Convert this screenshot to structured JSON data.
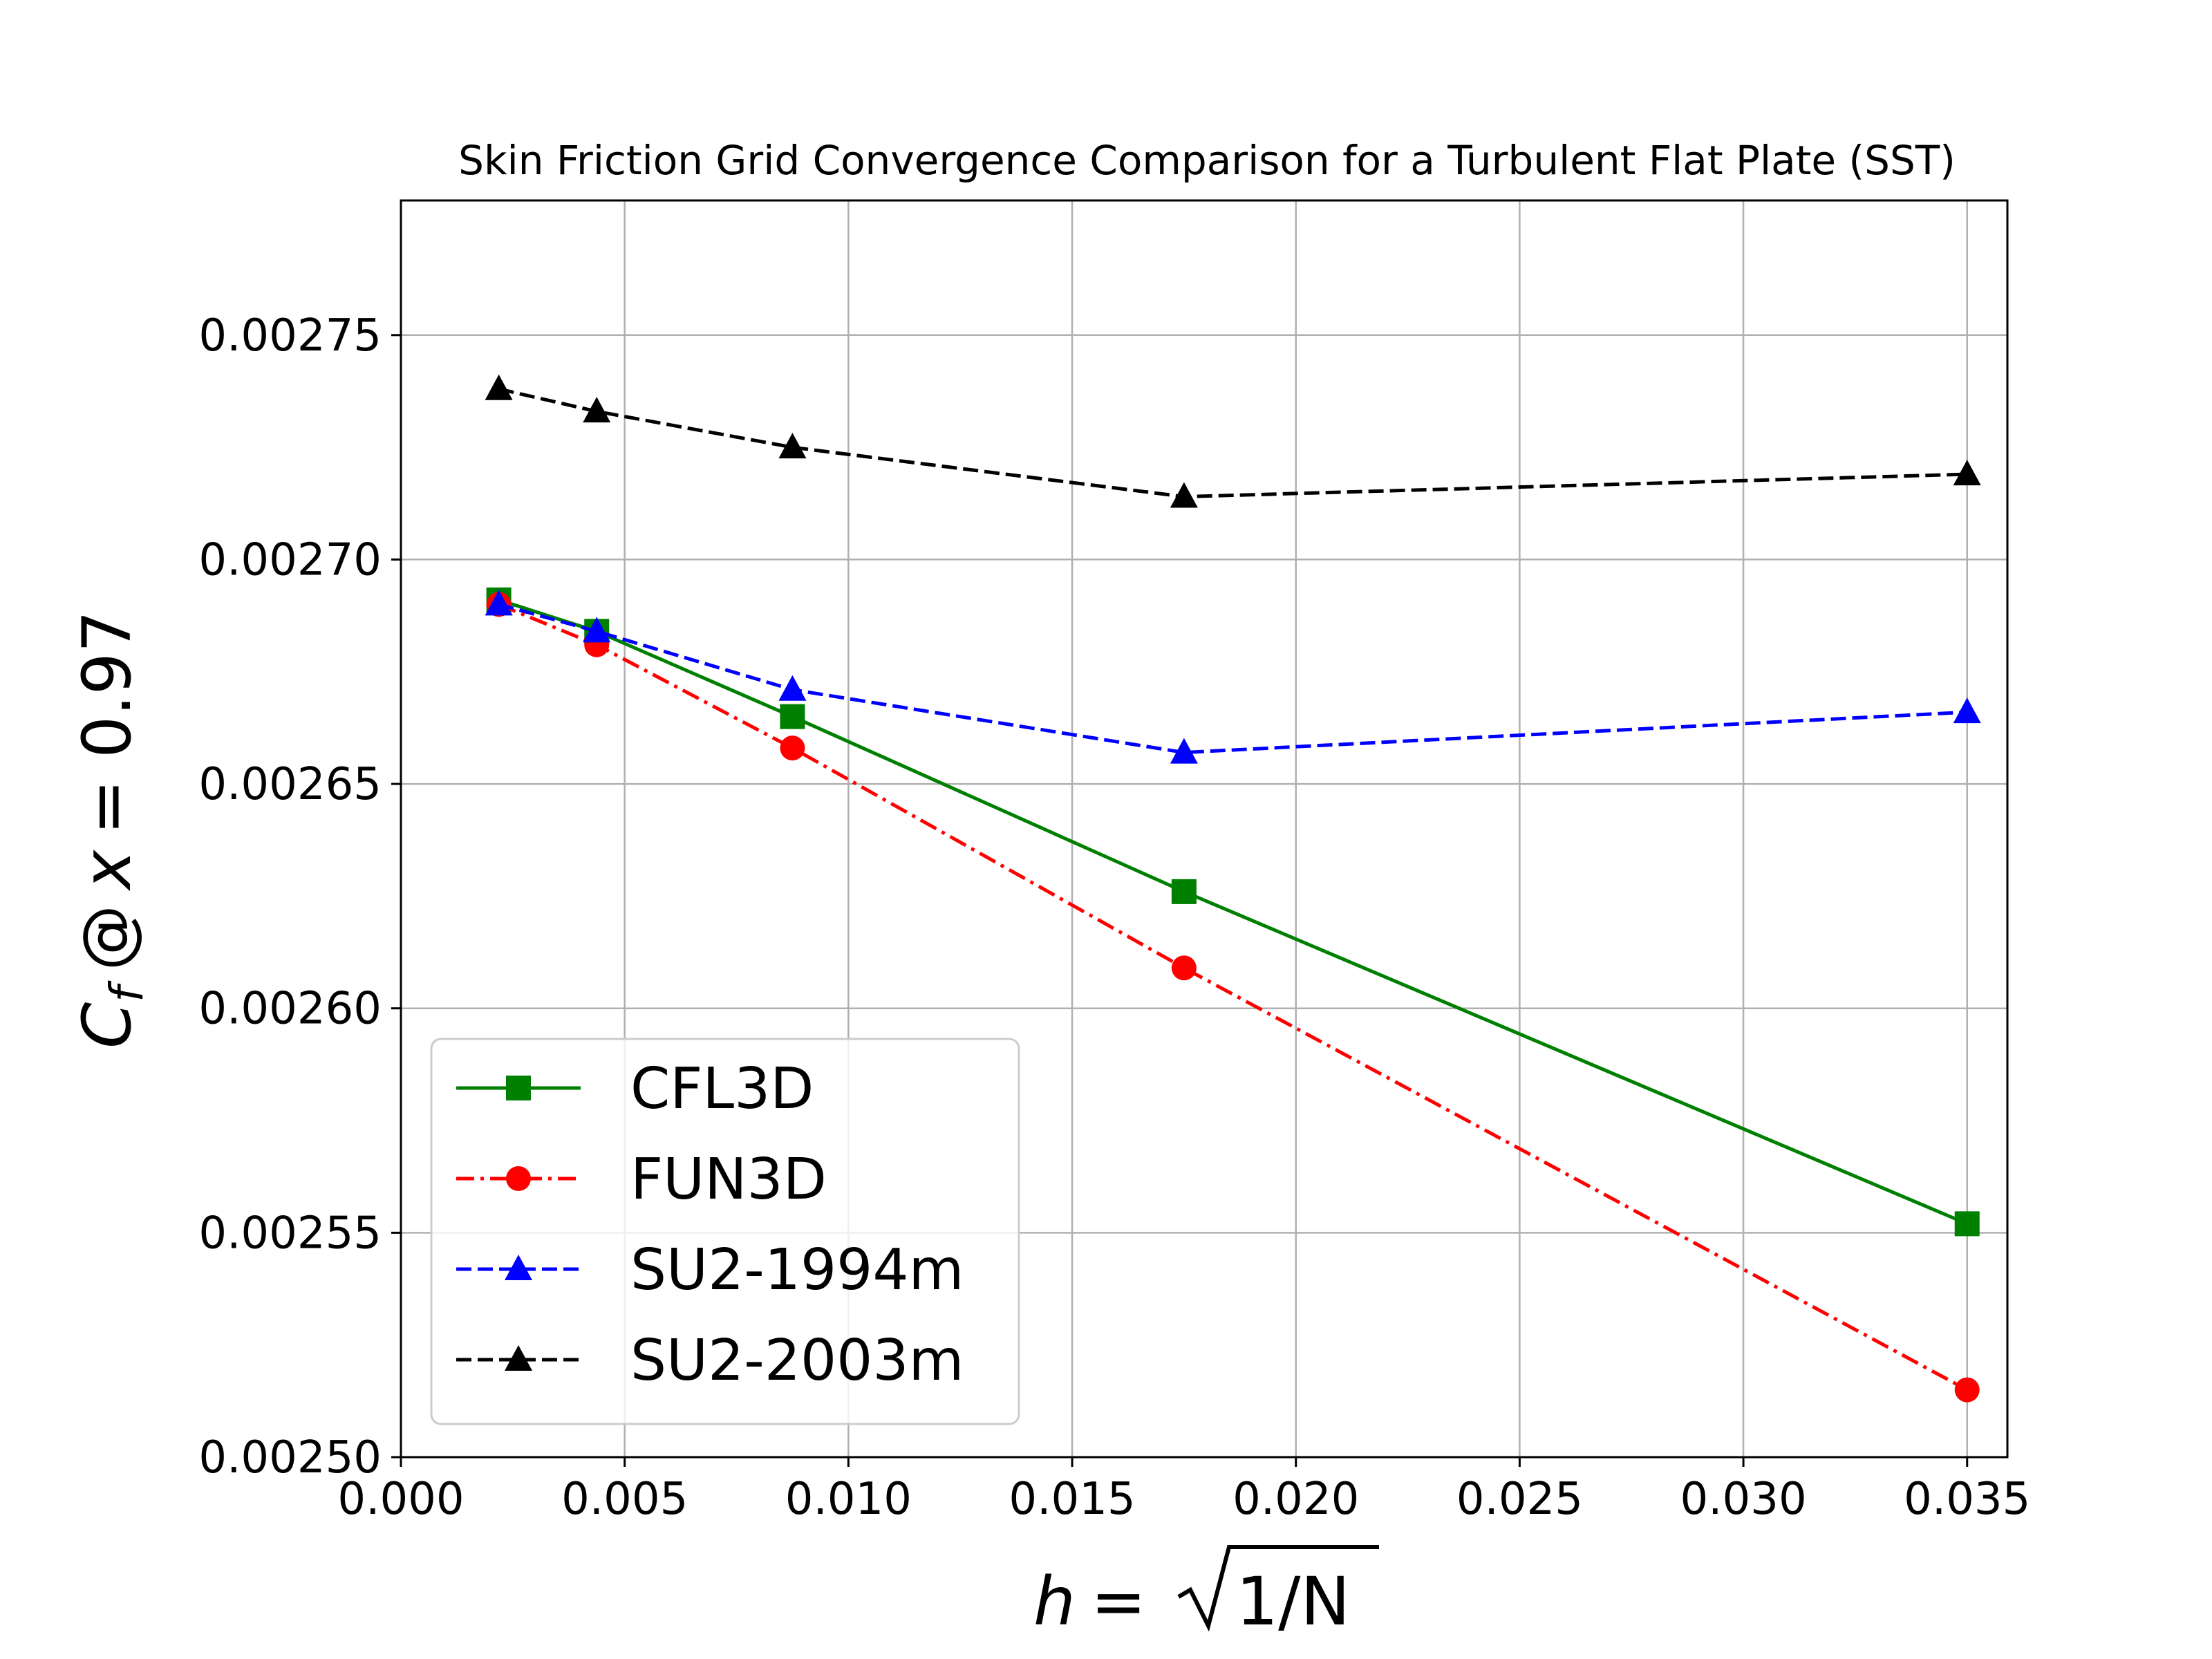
{
  "chart_data": {
    "type": "line",
    "title": "Skin Friction Grid Convergence Comparison for a Turbulent Flat Plate (SST)",
    "xlabel": {
      "var": "h",
      "eq": "=",
      "radicand": "1/N"
    },
    "ylabel": {
      "sym": "C",
      "sub": "f",
      "at": "@",
      "var": "x",
      "rest": "= 0.97"
    },
    "xlim": [
      0.0,
      0.0359
    ],
    "ylim": [
      0.0025,
      0.00278
    ],
    "xticks": [
      "0.000",
      "0.005",
      "0.010",
      "0.015",
      "0.020",
      "0.025",
      "0.030",
      "0.035"
    ],
    "yticks": [
      "0.00250",
      "0.00255",
      "0.00260",
      "0.00265",
      "0.00270",
      "0.00275"
    ],
    "grid": true,
    "legend_position": "lower-left",
    "series": [
      {
        "name": "CFL3D",
        "color": "#008000",
        "linestyle": "solid",
        "marker": "square",
        "x": [
          0.0021875,
          0.004375,
          0.00875,
          0.0175,
          0.035
        ],
        "y": [
          0.002691,
          0.002684,
          0.002665,
          0.002626,
          0.002552
        ]
      },
      {
        "name": "FUN3D",
        "color": "#ff0000",
        "linestyle": "dashdot",
        "marker": "circle",
        "x": [
          0.0021875,
          0.004375,
          0.00875,
          0.0175,
          0.035
        ],
        "y": [
          0.00269,
          0.002681,
          0.002658,
          0.002609,
          0.002515
        ]
      },
      {
        "name": "SU2-1994m",
        "color": "#0000ff",
        "linestyle": "dashed",
        "marker": "triangle",
        "x": [
          0.0021875,
          0.004375,
          0.00875,
          0.0175,
          0.035
        ],
        "y": [
          0.00269,
          0.002684,
          0.002671,
          0.002657,
          0.002666
        ]
      },
      {
        "name": "SU2-2003m",
        "color": "#000000",
        "linestyle": "dashed",
        "marker": "triangle",
        "x": [
          0.0021875,
          0.004375,
          0.00875,
          0.0175,
          0.035
        ],
        "y": [
          0.002738,
          0.002733,
          0.002725,
          0.002714,
          0.002719
        ]
      }
    ]
  }
}
